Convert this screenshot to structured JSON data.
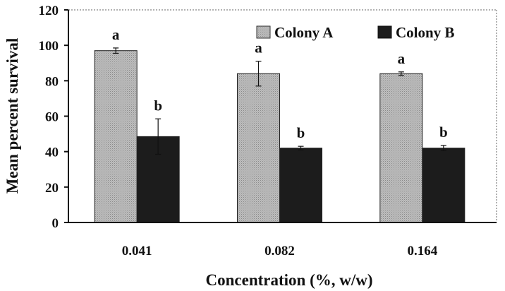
{
  "chart_data": {
    "type": "bar",
    "title": "",
    "xlabel": "Concentration (%, w/w)",
    "ylabel": "Mean percent survival",
    "categories": [
      "0.041",
      "0.082",
      "0.164"
    ],
    "ylim": [
      0,
      120
    ],
    "yticks": [
      "0",
      "20",
      "40",
      "60",
      "80",
      "100",
      "120"
    ],
    "grid": false,
    "legend_position": "top-right",
    "series": [
      {
        "name": "Colony A",
        "color": "#b3b3b3",
        "pattern": "dotted-gray",
        "values": [
          97,
          84,
          84
        ],
        "errors": [
          1.5,
          7,
          1
        ],
        "labels": [
          "a",
          "a",
          "a"
        ]
      },
      {
        "name": "Colony B",
        "color": "#1c1c1c",
        "pattern": "solid-black",
        "values": [
          48.5,
          42,
          42
        ],
        "errors": [
          10,
          1,
          1.5
        ],
        "labels": [
          "b",
          "b",
          "b"
        ]
      }
    ]
  }
}
